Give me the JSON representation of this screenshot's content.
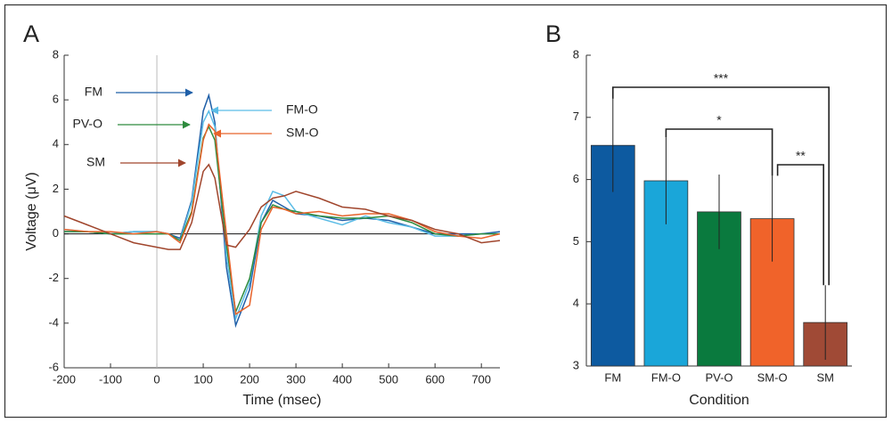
{
  "chart_data": [
    {
      "type": "line",
      "panel": "A",
      "xlabel": "Time (msec)",
      "ylabel": "Voltage (μV)",
      "x": [
        -200,
        -150,
        -100,
        -50,
        0,
        25,
        50,
        75,
        100,
        112,
        125,
        150,
        170,
        200,
        225,
        250,
        275,
        300,
        350,
        400,
        450,
        500,
        550,
        600,
        650,
        700,
        740
      ],
      "series": [
        {
          "name": "FM",
          "color": "#1f5fa8",
          "values": [
            0.1,
            0.1,
            0,
            0.1,
            0.1,
            0,
            -0.2,
            1.5,
            5.5,
            6.2,
            5.0,
            -1.5,
            -4.1,
            -2.5,
            0.5,
            1.5,
            1.2,
            0.9,
            0.8,
            0.6,
            0.7,
            0.6,
            0.3,
            0,
            0,
            0,
            0.1
          ]
        },
        {
          "name": "FM-O",
          "color": "#5bbce6",
          "values": [
            0.2,
            0.1,
            0,
            0.1,
            0.1,
            0,
            -0.3,
            1.4,
            5.0,
            5.5,
            4.8,
            -1.0,
            -3.8,
            -2.2,
            0.8,
            1.9,
            1.7,
            1.0,
            0.7,
            0.4,
            0.8,
            0.5,
            0.3,
            -0.1,
            -0.1,
            0,
            0
          ]
        },
        {
          "name": "PV-O",
          "color": "#2e8b3e",
          "values": [
            0.1,
            0.1,
            0,
            0,
            0,
            0,
            -0.3,
            1.0,
            4.3,
            4.8,
            4.2,
            -0.5,
            -3.5,
            -2.0,
            0.5,
            1.3,
            1.1,
            1.0,
            0.8,
            0.7,
            0.7,
            0.8,
            0.5,
            0,
            -0.1,
            0,
            0
          ]
        },
        {
          "name": "SM-O",
          "color": "#e8632b",
          "values": [
            0.2,
            0.1,
            0.1,
            0,
            0.1,
            0,
            -0.4,
            0.9,
            4.2,
            4.9,
            4.6,
            0,
            -3.6,
            -3.2,
            0.2,
            1.2,
            1.1,
            0.9,
            1.0,
            0.8,
            0.9,
            0.9,
            0.6,
            0.1,
            -0.1,
            -0.2,
            0
          ]
        },
        {
          "name": "SM",
          "color": "#a0452c",
          "values": [
            0.8,
            0.4,
            0,
            -0.4,
            -0.6,
            -0.7,
            -0.7,
            0.5,
            2.8,
            3.1,
            2.5,
            -0.5,
            -0.6,
            0.2,
            1.2,
            1.6,
            1.7,
            1.9,
            1.6,
            1.2,
            1.1,
            0.8,
            0.6,
            0.2,
            0,
            -0.4,
            -0.3
          ]
        }
      ],
      "xlim": [
        -200,
        740
      ],
      "xticks": [
        -200,
        -100,
        0,
        100,
        200,
        300,
        400,
        500,
        600,
        700
      ],
      "ylim": [
        -6,
        8
      ],
      "yticks": [
        -6,
        -4,
        -2,
        0,
        2,
        4,
        6,
        8
      ]
    },
    {
      "type": "bar",
      "panel": "B",
      "xlabel": "Condition",
      "categories": [
        "FM",
        "FM-O",
        "PV-O",
        "SM-O",
        "SM"
      ],
      "values": [
        6.55,
        5.98,
        5.48,
        5.37,
        3.7
      ],
      "errors": [
        0.75,
        0.7,
        0.6,
        0.69,
        0.6
      ],
      "colors": [
        "#0d5aa0",
        "#1aa6d9",
        "#0a7a3e",
        "#f0632a",
        "#a04a36"
      ],
      "annotations": [
        "***",
        "*",
        "**"
      ],
      "ylim": [
        3,
        8
      ],
      "yticks": [
        3,
        4,
        5,
        6,
        7,
        8
      ]
    }
  ]
}
